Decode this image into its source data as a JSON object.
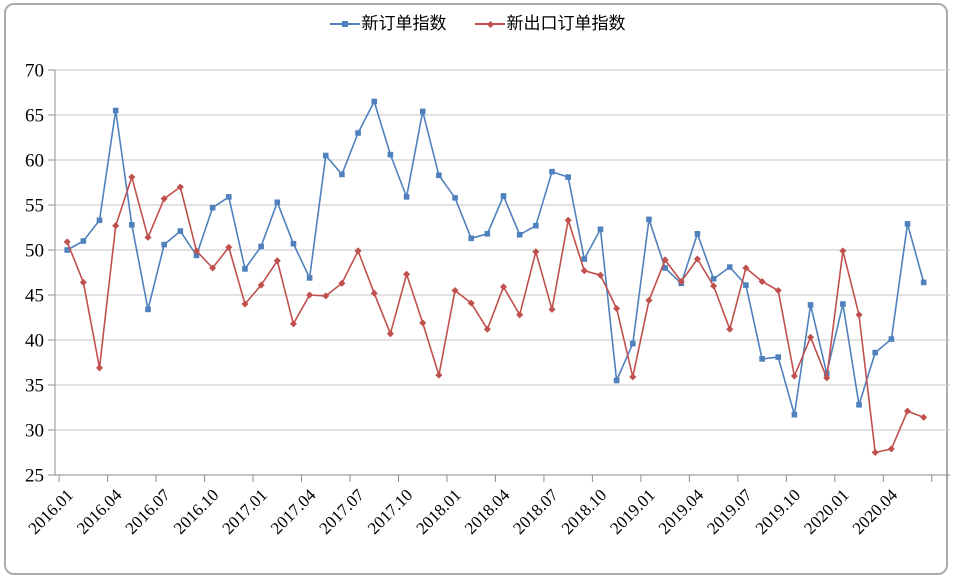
{
  "chart_data": {
    "type": "line",
    "title": "",
    "x": [
      "2016.01",
      "2016.02",
      "2016.03",
      "2016.04",
      "2016.05",
      "2016.06",
      "2016.07",
      "2016.08",
      "2016.09",
      "2016.10",
      "2016.11",
      "2016.12",
      "2017.01",
      "2017.02",
      "2017.03",
      "2017.04",
      "2017.05",
      "2017.06",
      "2017.07",
      "2017.08",
      "2017.09",
      "2017.10",
      "2017.11",
      "2017.12",
      "2018.01",
      "2018.02",
      "2018.03",
      "2018.04",
      "2018.05",
      "2018.06",
      "2018.07",
      "2018.08",
      "2018.09",
      "2018.10",
      "2018.11",
      "2018.12",
      "2019.01",
      "2019.02",
      "2019.03",
      "2019.04",
      "2019.05",
      "2019.06",
      "2019.07",
      "2019.08",
      "2019.09",
      "2019.10",
      "2019.11",
      "2019.12",
      "2020.01",
      "2020.02",
      "2020.03",
      "2020.04",
      "2020.05",
      "2020.06"
    ],
    "x_tick_labels": [
      "2016.01",
      "2016.04",
      "2016.07",
      "2016.10",
      "2017.01",
      "2017.04",
      "2017.07",
      "2017.10",
      "2018.01",
      "2018.04",
      "2018.07",
      "2018.10",
      "2019.01",
      "2019.04",
      "2019.07",
      "2019.10",
      "2020.01",
      "2020.04"
    ],
    "x_tick_every": 3,
    "series": [
      {
        "name": "新订单指数",
        "color": "#4f81bd",
        "marker": "square",
        "values": [
          50.0,
          51.0,
          53.3,
          65.5,
          52.8,
          43.4,
          50.6,
          52.1,
          49.4,
          54.7,
          55.9,
          47.9,
          50.4,
          55.3,
          50.7,
          46.9,
          60.5,
          58.4,
          63.0,
          66.5,
          60.6,
          55.9,
          65.4,
          58.3,
          55.8,
          51.3,
          51.8,
          56.0,
          51.7,
          52.7,
          58.7,
          58.1,
          49.0,
          52.3,
          35.5,
          39.6,
          53.4,
          48.0,
          46.3,
          51.8,
          46.8,
          48.1,
          46.1,
          37.9,
          38.1,
          31.7,
          43.9,
          36.3,
          44.0,
          32.8,
          38.6,
          40.1,
          52.9,
          46.4
        ]
      },
      {
        "name": "新出口订单指数",
        "color": "#c0504d",
        "marker": "diamond",
        "values": [
          50.9,
          46.4,
          36.9,
          52.7,
          58.1,
          51.4,
          55.7,
          57.0,
          49.9,
          48.0,
          50.3,
          44.0,
          46.1,
          48.8,
          41.8,
          45.0,
          44.9,
          46.3,
          49.9,
          45.2,
          40.7,
          47.3,
          41.9,
          36.1,
          45.5,
          44.1,
          41.2,
          45.9,
          42.8,
          49.8,
          43.4,
          53.3,
          47.7,
          47.2,
          43.5,
          35.9,
          44.4,
          48.9,
          46.5,
          49.0,
          46.0,
          41.2,
          48.0,
          46.5,
          45.5,
          36.0,
          40.3,
          35.8,
          49.9,
          42.8,
          27.5,
          27.9,
          32.1,
          31.4
        ]
      }
    ],
    "ylim": [
      25,
      70
    ],
    "y_ticks": [
      25,
      30,
      35,
      40,
      45,
      50,
      55,
      60,
      65,
      70
    ],
    "grid": true,
    "grid_color": "#c6c6c6",
    "axis_color": "#8e8e8e",
    "legend_position": "top-center"
  }
}
